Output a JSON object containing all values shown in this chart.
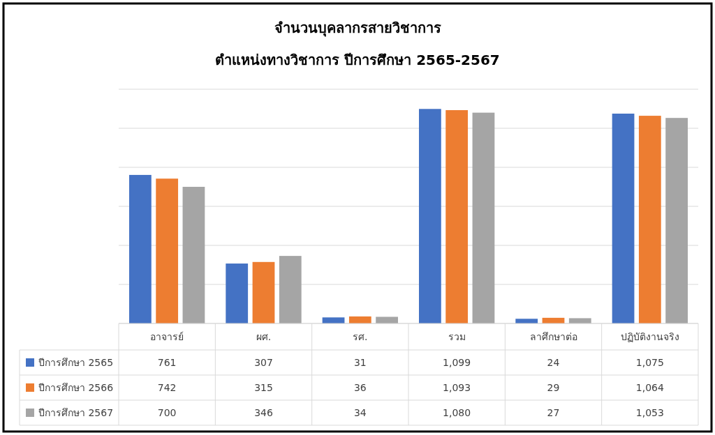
{
  "chart_data": {
    "type": "bar",
    "title": "จำนวนบุคลากรสายวิชาการ",
    "subtitle": "ตำแหน่งทางวิชาการ ปีการศึกษา 2565-2567",
    "categories": [
      "อาจารย์",
      "ผศ.",
      "รศ.",
      "รวม",
      "ลาศึกษาต่อ",
      "ปฏิบัติงานจริง"
    ],
    "series": [
      {
        "name": "ปีการศึกษา 2565",
        "color": "#4472c4",
        "values": [
          761,
          307,
          31,
          1099,
          24,
          1075
        ],
        "value_labels": [
          "761",
          "307",
          "31",
          "1,099",
          "24",
          "1,075"
        ]
      },
      {
        "name": "ปีการศึกษา 2566",
        "color": "#ed7d31",
        "values": [
          742,
          315,
          36,
          1093,
          29,
          1064
        ],
        "value_labels": [
          "742",
          "315",
          "36",
          "1,093",
          "29",
          "1,064"
        ]
      },
      {
        "name": "ปีการศึกษา 2567",
        "color": "#a5a5a5",
        "values": [
          700,
          346,
          34,
          1080,
          27,
          1053
        ],
        "value_labels": [
          "700",
          "346",
          "34",
          "1,080",
          "27",
          "1,053"
        ]
      }
    ],
    "grid": "y",
    "tick_labels": "x",
    "legend": "bottom"
  }
}
